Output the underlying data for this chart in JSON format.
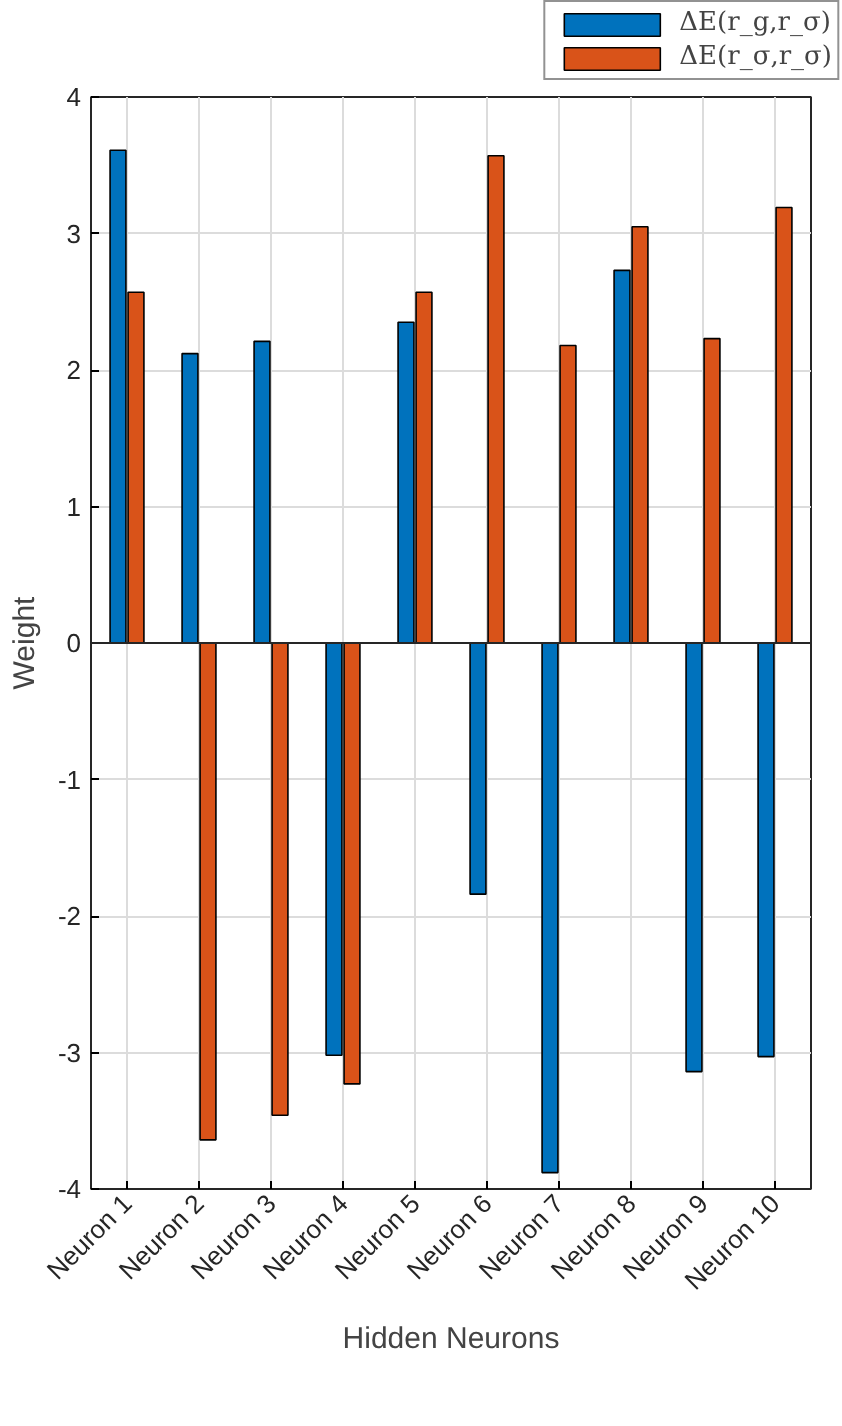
{
  "chart_data": {
    "type": "bar",
    "xlabel": "Hidden Neurons",
    "ylabel": "Weight",
    "categories": [
      "Neuron 1",
      "Neuron 2",
      "Neuron 3",
      "Neuron 4",
      "Neuron 5",
      "Neuron 6",
      "Neuron 7",
      "Neuron 8",
      "Neuron 9",
      "Neuron 10"
    ],
    "series": [
      {
        "name": "ΔE(r_g,r_σ)",
        "color": "#0072bd",
        "values": [
          3.61,
          2.12,
          2.21,
          -3.02,
          2.35,
          -1.84,
          -3.88,
          2.73,
          -3.14,
          -3.03
        ]
      },
      {
        "name": "ΔE(r_σ,r_σ)",
        "color": "#d95319",
        "values": [
          2.57,
          -3.64,
          -3.46,
          -3.23,
          2.57,
          3.57,
          2.18,
          3.05,
          2.23,
          3.19
        ]
      }
    ],
    "ylim": [
      -4,
      4
    ],
    "yticks": [
      -4,
      -3,
      -2,
      -1,
      0,
      1,
      2,
      3,
      4
    ],
    "grid": true,
    "legend": "top right"
  }
}
